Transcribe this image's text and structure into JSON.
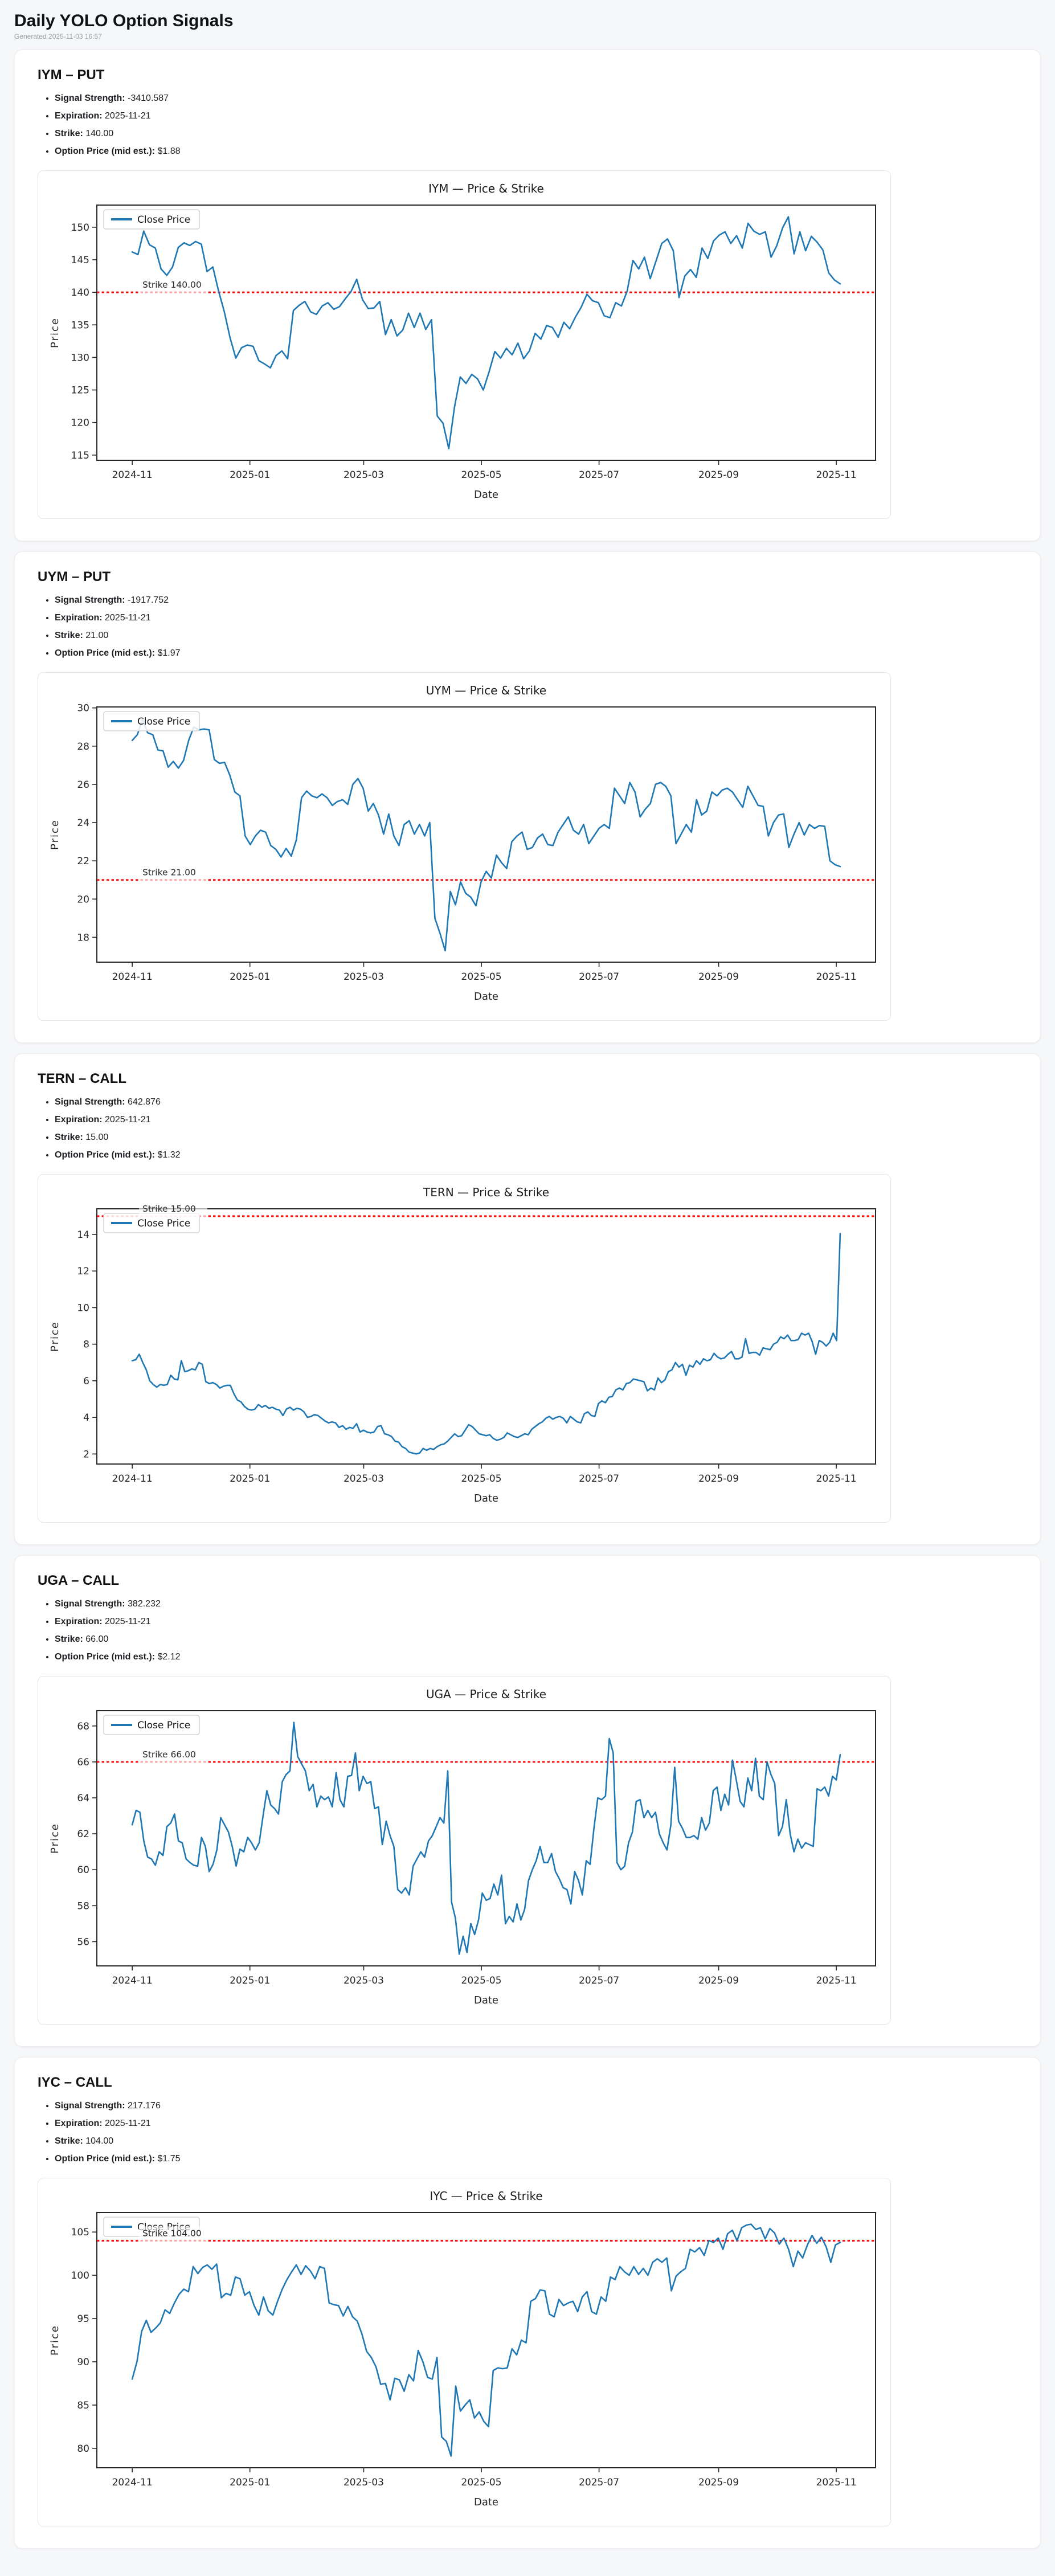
{
  "page": {
    "title": "Daily YOLO Option Signals",
    "generated": "Generated 2025-11-03 16:57"
  },
  "labels": {
    "signal_strength": "Signal Strength:",
    "expiration": "Expiration:",
    "strike": "Strike:",
    "option_price": "Option Price (mid est.):"
  },
  "colors": {
    "line": "#1f77b4",
    "strike": "#fb0f0f",
    "spine": "#262626",
    "tick_text": "#262626",
    "title_text": "#1a1a1a",
    "strike_label_text": "#2a2a2a",
    "legend_border": "#cccccc",
    "page_bg": "#f6f7f8"
  },
  "signals": [
    {
      "heading": "IYM – PUT",
      "signal_strength": "-3410.587",
      "expiration": "2025-11-21",
      "strike": "140.00",
      "option_price": "$1.88"
    },
    {
      "heading": "UYM – PUT",
      "signal_strength": "-1917.752",
      "expiration": "2025-11-21",
      "strike": "21.00",
      "option_price": "$1.97"
    },
    {
      "heading": "TERN – CALL",
      "signal_strength": "642.876",
      "expiration": "2025-11-21",
      "strike": "15.00",
      "option_price": "$1.32"
    },
    {
      "heading": "UGA – CALL",
      "signal_strength": "382.232",
      "expiration": "2025-11-21",
      "strike": "66.00",
      "option_price": "$2.12"
    },
    {
      "heading": "IYC – CALL",
      "signal_strength": "217.176",
      "expiration": "2025-11-21",
      "strike": "104.00",
      "option_price": "$1.75"
    }
  ],
  "chart_data": [
    {
      "type": "line",
      "title": "IYM — Price & Strike",
      "xlabel": "Date",
      "ylabel": "Price",
      "legend": [
        "Close Price"
      ],
      "legend_position": "upper-left",
      "grid": false,
      "strike_value": 140.0,
      "strike_label": "Strike 140.00",
      "x_start": "2024-11-01",
      "x_end": "2025-11-03",
      "x_ticks": [
        {
          "date": "2024-11-01",
          "label": "2024-11"
        },
        {
          "date": "2025-01-01",
          "label": "2025-01"
        },
        {
          "date": "2025-03-01",
          "label": "2025-03"
        },
        {
          "date": "2025-05-01",
          "label": "2025-05"
        },
        {
          "date": "2025-07-01",
          "label": "2025-07"
        },
        {
          "date": "2025-09-01",
          "label": "2025-09"
        },
        {
          "date": "2025-11-01",
          "label": "2025-11"
        }
      ],
      "y_ticks": [
        115,
        120,
        125,
        130,
        135,
        140,
        145,
        150
      ],
      "ylim": [
        114.2,
        153.4
      ],
      "values": [
        146.2,
        145.8,
        149.4,
        147.3,
        146.8,
        143.6,
        142.6,
        143.9,
        146.9,
        147.6,
        147.2,
        147.8,
        147.4,
        143.2,
        143.9,
        140.2,
        137.0,
        133.0,
        129.9,
        131.5,
        131.9,
        131.7,
        129.5,
        129.0,
        128.4,
        130.3,
        131.0,
        129.8,
        137.2,
        138.0,
        138.6,
        137.0,
        136.6,
        137.9,
        138.4,
        137.4,
        137.8,
        139.0,
        140.1,
        142.0,
        138.9,
        137.5,
        137.6,
        138.6,
        133.5,
        135.8,
        133.3,
        134.2,
        136.8,
        134.6,
        136.8,
        134.3,
        135.8,
        121.0,
        119.9,
        116.0,
        122.4,
        127.0,
        126.0,
        127.4,
        126.7,
        125.0,
        127.8,
        130.9,
        129.9,
        131.4,
        130.4,
        132.2,
        129.8,
        131.0,
        133.7,
        132.8,
        134.9,
        134.6,
        133.1,
        135.4,
        134.4,
        136.2,
        137.7,
        139.7,
        138.7,
        138.4,
        136.4,
        136.1,
        138.4,
        137.9,
        140.2,
        144.9,
        143.6,
        145.4,
        142.1,
        144.8,
        147.5,
        148.2,
        146.4,
        139.2,
        142.5,
        143.5,
        142.3,
        146.8,
        145.2,
        147.9,
        148.8,
        149.3,
        147.5,
        148.7,
        146.8,
        150.6,
        149.4,
        148.9,
        149.3,
        145.4,
        147.2,
        149.9,
        151.6,
        145.9,
        149.3,
        146.4,
        148.6,
        147.7,
        146.5,
        143.0,
        141.9,
        141.3
      ]
    },
    {
      "type": "line",
      "title": "UYM — Price & Strike",
      "xlabel": "Date",
      "ylabel": "Price",
      "legend": [
        "Close Price"
      ],
      "legend_position": "upper-left",
      "grid": false,
      "strike_value": 21.0,
      "strike_label": "Strike 21.00",
      "x_start": "2024-11-01",
      "x_end": "2025-11-03",
      "x_ticks": [
        {
          "date": "2024-11-01",
          "label": "2024-11"
        },
        {
          "date": "2025-01-01",
          "label": "2025-01"
        },
        {
          "date": "2025-03-01",
          "label": "2025-03"
        },
        {
          "date": "2025-05-01",
          "label": "2025-05"
        },
        {
          "date": "2025-07-01",
          "label": "2025-07"
        },
        {
          "date": "2025-09-01",
          "label": "2025-09"
        },
        {
          "date": "2025-11-01",
          "label": "2025-11"
        }
      ],
      "y_ticks": [
        18,
        20,
        22,
        24,
        26,
        28,
        30
      ],
      "ylim": [
        16.7,
        30.05
      ],
      "values": [
        28.3,
        28.6,
        29.4,
        28.7,
        28.6,
        27.8,
        27.75,
        26.9,
        27.2,
        26.85,
        27.25,
        28.3,
        29.0,
        28.85,
        28.9,
        28.85,
        27.3,
        27.1,
        27.15,
        26.5,
        25.6,
        25.4,
        23.3,
        22.85,
        23.3,
        23.6,
        23.5,
        22.8,
        22.6,
        22.2,
        22.65,
        22.25,
        23.1,
        25.3,
        25.65,
        25.4,
        25.3,
        25.5,
        25.3,
        24.9,
        25.1,
        25.2,
        24.95,
        26.0,
        26.3,
        25.8,
        24.6,
        25.0,
        24.4,
        23.4,
        24.45,
        23.3,
        22.8,
        23.9,
        24.1,
        23.4,
        23.9,
        23.3,
        24.0,
        19.0,
        18.2,
        17.3,
        20.4,
        19.7,
        20.9,
        20.3,
        20.1,
        19.65,
        20.9,
        21.45,
        21.1,
        22.3,
        21.9,
        21.6,
        23.0,
        23.3,
        23.5,
        22.6,
        22.7,
        23.2,
        23.4,
        22.85,
        22.8,
        23.5,
        23.9,
        24.3,
        23.6,
        23.4,
        23.9,
        22.9,
        23.3,
        23.7,
        23.9,
        23.7,
        25.8,
        25.4,
        25.0,
        26.1,
        25.6,
        24.3,
        24.7,
        25.0,
        26.0,
        26.1,
        25.9,
        25.4,
        22.9,
        23.4,
        23.9,
        23.5,
        25.2,
        24.4,
        24.6,
        25.6,
        25.4,
        25.7,
        25.8,
        25.6,
        25.2,
        24.8,
        25.9,
        25.4,
        24.9,
        24.85,
        23.3,
        24.0,
        24.4,
        24.45,
        22.7,
        23.4,
        24.0,
        23.35,
        23.9,
        23.7,
        23.85,
        23.8,
        22.0,
        21.8,
        21.7
      ]
    },
    {
      "type": "line",
      "title": "TERN — Price & Strike",
      "xlabel": "Date",
      "ylabel": "Price",
      "legend": [
        "Close Price"
      ],
      "legend_position": "upper-left",
      "grid": false,
      "strike_value": 15.0,
      "strike_label": "Strike 15.00",
      "x_start": "2024-11-01",
      "x_end": "2025-11-03",
      "x_ticks": [
        {
          "date": "2024-11-01",
          "label": "2024-11"
        },
        {
          "date": "2025-01-01",
          "label": "2025-01"
        },
        {
          "date": "2025-03-01",
          "label": "2025-03"
        },
        {
          "date": "2025-05-01",
          "label": "2025-05"
        },
        {
          "date": "2025-07-01",
          "label": "2025-07"
        },
        {
          "date": "2025-09-01",
          "label": "2025-09"
        },
        {
          "date": "2025-11-01",
          "label": "2025-11"
        }
      ],
      "y_ticks": [
        2,
        4,
        6,
        8,
        10,
        12,
        14
      ],
      "ylim": [
        1.45,
        15.4
      ],
      "values": [
        7.1,
        7.15,
        7.45,
        7.0,
        6.6,
        6.0,
        5.8,
        5.65,
        5.8,
        5.75,
        5.8,
        6.3,
        6.1,
        6.05,
        7.1,
        6.5,
        6.55,
        6.65,
        6.6,
        7.0,
        6.9,
        5.95,
        5.85,
        5.9,
        5.8,
        5.6,
        5.7,
        5.75,
        5.75,
        5.3,
        4.95,
        4.85,
        4.6,
        4.45,
        4.4,
        4.45,
        4.7,
        4.55,
        4.65,
        4.5,
        4.55,
        4.45,
        4.4,
        4.1,
        4.45,
        4.55,
        4.4,
        4.5,
        4.45,
        4.3,
        4.0,
        4.05,
        4.15,
        4.1,
        3.95,
        3.8,
        3.7,
        3.75,
        3.7,
        3.45,
        3.55,
        3.35,
        3.45,
        3.4,
        3.65,
        3.2,
        3.3,
        3.2,
        3.15,
        3.2,
        3.5,
        3.55,
        3.1,
        3.05,
        2.95,
        2.7,
        2.65,
        2.4,
        2.3,
        2.1,
        2.05,
        2.0,
        2.05,
        2.3,
        2.2,
        2.3,
        2.25,
        2.4,
        2.5,
        2.55,
        2.7,
        2.9,
        3.1,
        2.95,
        3.0,
        3.3,
        3.6,
        3.5,
        3.3,
        3.1,
        3.05,
        3.0,
        3.05,
        2.85,
        2.75,
        2.8,
        2.9,
        3.15,
        3.05,
        2.95,
        2.9,
        3.0,
        3.1,
        3.05,
        3.35,
        3.5,
        3.65,
        3.75,
        3.95,
        4.05,
        3.9,
        4.0,
        4.05,
        3.95,
        3.7,
        4.05,
        3.9,
        3.75,
        3.7,
        4.2,
        4.3,
        4.1,
        4.05,
        4.75,
        4.9,
        4.8,
        5.1,
        5.15,
        5.5,
        5.6,
        5.5,
        5.85,
        5.9,
        6.1,
        6.05,
        6.0,
        5.95,
        5.45,
        5.6,
        5.5,
        6.15,
        5.9,
        6.05,
        6.5,
        6.6,
        7.0,
        6.75,
        6.9,
        6.3,
        6.85,
        6.75,
        7.1,
        6.9,
        7.2,
        7.1,
        7.15,
        7.5,
        7.3,
        7.2,
        7.25,
        7.45,
        7.6,
        7.2,
        7.2,
        7.3,
        8.3,
        7.5,
        7.55,
        7.55,
        7.4,
        7.8,
        7.75,
        7.7,
        8.0,
        8.1,
        8.4,
        8.3,
        8.5,
        8.2,
        8.2,
        8.25,
        8.6,
        8.5,
        8.6,
        8.15,
        7.45,
        8.2,
        8.1,
        7.9,
        8.1,
        8.6,
        8.2,
        14.05
      ]
    },
    {
      "type": "line",
      "title": "UGA — Price & Strike",
      "xlabel": "Date",
      "ylabel": "Price",
      "legend": [
        "Close Price"
      ],
      "legend_position": "upper-left",
      "grid": false,
      "strike_value": 66.0,
      "strike_label": "Strike 66.00",
      "x_start": "2024-11-01",
      "x_end": "2025-11-03",
      "x_ticks": [
        {
          "date": "2024-11-01",
          "label": "2024-11"
        },
        {
          "date": "2025-01-01",
          "label": "2025-01"
        },
        {
          "date": "2025-03-01",
          "label": "2025-03"
        },
        {
          "date": "2025-05-01",
          "label": "2025-05"
        },
        {
          "date": "2025-07-01",
          "label": "2025-07"
        },
        {
          "date": "2025-09-01",
          "label": "2025-09"
        },
        {
          "date": "2025-11-01",
          "label": "2025-11"
        }
      ],
      "y_ticks": [
        56,
        58,
        60,
        62,
        64,
        66,
        68
      ],
      "ylim": [
        54.65,
        68.85
      ],
      "values": [
        62.5,
        63.3,
        63.2,
        61.6,
        60.7,
        60.6,
        60.25,
        61.0,
        60.8,
        62.4,
        62.6,
        63.1,
        61.6,
        61.5,
        60.6,
        60.4,
        60.25,
        60.2,
        61.8,
        61.3,
        59.9,
        60.3,
        61.1,
        62.9,
        62.5,
        62.1,
        61.3,
        60.2,
        61.15,
        61.0,
        61.8,
        61.5,
        61.1,
        61.5,
        63.0,
        64.4,
        63.6,
        63.4,
        63.1,
        64.9,
        65.3,
        65.5,
        68.2,
        66.3,
        65.9,
        65.5,
        64.4,
        64.75,
        63.5,
        64.1,
        63.9,
        64.05,
        63.5,
        65.4,
        63.9,
        63.5,
        65.2,
        65.25,
        66.5,
        64.4,
        65.2,
        64.8,
        64.9,
        63.4,
        63.5,
        61.4,
        62.7,
        61.9,
        61.3,
        58.9,
        58.7,
        59.0,
        58.6,
        60.2,
        60.6,
        61.0,
        60.7,
        61.6,
        61.9,
        62.4,
        62.9,
        62.6,
        65.5,
        58.2,
        57.3,
        55.3,
        56.3,
        55.4,
        57.0,
        56.4,
        57.2,
        58.7,
        58.3,
        58.4,
        59.2,
        58.6,
        59.7,
        57.0,
        57.4,
        57.1,
        58.1,
        57.2,
        57.8,
        59.4,
        60.0,
        60.5,
        61.3,
        60.4,
        60.4,
        60.9,
        59.9,
        59.5,
        59.0,
        58.9,
        58.1,
        59.9,
        59.4,
        58.6,
        60.5,
        60.3,
        62.3,
        64.0,
        63.9,
        64.1,
        67.3,
        66.5,
        60.4,
        60.0,
        60.2,
        61.5,
        62.1,
        63.8,
        63.9,
        62.9,
        63.3,
        62.9,
        63.2,
        62.0,
        61.5,
        61.1,
        62.5,
        65.7,
        62.7,
        62.3,
        61.8,
        61.8,
        61.9,
        61.7,
        62.9,
        62.2,
        62.6,
        64.4,
        64.6,
        63.3,
        64.2,
        63.6,
        66.1,
        65.0,
        63.8,
        63.5,
        65.1,
        64.4,
        66.2,
        64.1,
        63.9,
        66.0,
        65.3,
        64.8,
        61.9,
        62.4,
        63.9,
        62.0,
        61.0,
        61.7,
        61.2,
        61.5,
        61.4,
        61.3,
        64.5,
        64.4,
        64.6,
        64.1,
        65.2,
        65.0,
        66.4
      ]
    },
    {
      "type": "line",
      "title": "IYC — Price & Strike",
      "xlabel": "Date",
      "ylabel": "Price",
      "legend": [
        "Close Price"
      ],
      "legend_position": "upper-left",
      "grid": false,
      "strike_value": 104.0,
      "strike_label": "Strike 104.00",
      "x_start": "2024-11-01",
      "x_end": "2025-11-03",
      "x_ticks": [
        {
          "date": "2024-11-01",
          "label": "2024-11"
        },
        {
          "date": "2025-01-01",
          "label": "2025-01"
        },
        {
          "date": "2025-03-01",
          "label": "2025-03"
        },
        {
          "date": "2025-05-01",
          "label": "2025-05"
        },
        {
          "date": "2025-07-01",
          "label": "2025-07"
        },
        {
          "date": "2025-09-01",
          "label": "2025-09"
        },
        {
          "date": "2025-11-01",
          "label": "2025-11"
        }
      ],
      "y_ticks": [
        80,
        85,
        90,
        95,
        100,
        105
      ],
      "ylim": [
        77.75,
        107.25
      ],
      "values": [
        88.0,
        90.0,
        93.5,
        94.8,
        93.4,
        93.9,
        94.5,
        96.0,
        95.6,
        96.8,
        97.8,
        98.4,
        98.1,
        101.0,
        100.2,
        100.9,
        101.2,
        100.7,
        101.3,
        97.4,
        97.9,
        97.7,
        99.8,
        99.6,
        97.7,
        98.1,
        96.5,
        95.4,
        97.5,
        95.9,
        95.4,
        97.0,
        98.4,
        99.5,
        100.4,
        101.2,
        100.1,
        101.1,
        100.5,
        99.6,
        101.0,
        100.8,
        96.8,
        96.6,
        96.5,
        95.3,
        96.4,
        95.2,
        94.7,
        93.2,
        91.2,
        90.5,
        89.4,
        87.4,
        87.5,
        85.6,
        88.1,
        87.9,
        86.6,
        88.5,
        87.8,
        91.3,
        90.0,
        88.2,
        88.0,
        90.5,
        81.3,
        80.8,
        79.1,
        87.2,
        84.3,
        85.0,
        85.6,
        83.5,
        84.2,
        83.1,
        82.5,
        89.0,
        89.3,
        89.2,
        89.3,
        91.5,
        90.8,
        92.5,
        92.2,
        97.0,
        97.3,
        98.3,
        98.2,
        95.5,
        95.2,
        97.2,
        96.5,
        96.8,
        97.0,
        95.8,
        97.5,
        98.1,
        95.8,
        95.5,
        97.5,
        97.0,
        99.8,
        99.5,
        101.0,
        100.4,
        100.0,
        101.0,
        100.1,
        100.8,
        100.0,
        101.5,
        101.9,
        101.5,
        102.0,
        98.2,
        99.9,
        100.4,
        100.8,
        103.0,
        102.7,
        103.2,
        102.3,
        104.0,
        103.8,
        104.3,
        103.0,
        104.8,
        105.2,
        104.0,
        105.5,
        105.8,
        105.9,
        105.3,
        105.5,
        104.2,
        105.4,
        104.9,
        103.6,
        104.3,
        103.0,
        101.0,
        102.8,
        102.0,
        103.5,
        104.6,
        103.7,
        104.4,
        103.3,
        101.5,
        103.5,
        103.8
      ]
    }
  ]
}
